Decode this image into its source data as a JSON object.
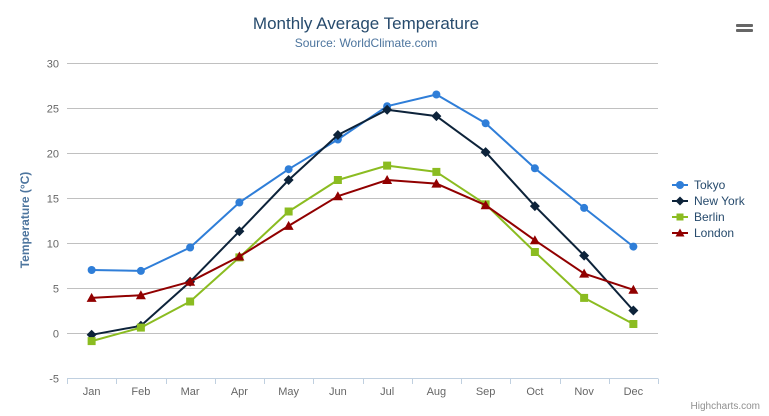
{
  "chart": {
    "credits": "Highcharts.com"
  },
  "colors": {
    "background": "#ffffff",
    "title": "#274b6d",
    "subtitle": "#4d759e",
    "axis_title": "#4d759e",
    "labels": "#666666",
    "grid": "#c0c0c0",
    "axis_line": "#c0d0e0",
    "legend_text": "#274b6d",
    "menu_icon": "#666666",
    "credits": "#909090"
  },
  "chart_data": {
    "type": "line",
    "title": "Monthly Average Temperature",
    "subtitle": "Source: WorldClimate.com",
    "xlabel": "",
    "ylabel": "Temperature (°C)",
    "ylim": [
      -5,
      30
    ],
    "ytick_step": 5,
    "grid": true,
    "legend_position": "right",
    "categories": [
      "Jan",
      "Feb",
      "Mar",
      "Apr",
      "May",
      "Jun",
      "Jul",
      "Aug",
      "Sep",
      "Oct",
      "Nov",
      "Dec"
    ],
    "series": [
      {
        "name": "Tokyo",
        "color": "#2f7ed8",
        "marker": "circle",
        "values": [
          7.0,
          6.9,
          9.5,
          14.5,
          18.2,
          21.5,
          25.2,
          26.5,
          23.3,
          18.3,
          13.9,
          9.6
        ]
      },
      {
        "name": "New York",
        "color": "#0d233a",
        "marker": "diamond",
        "values": [
          -0.2,
          0.8,
          5.7,
          11.3,
          17.0,
          22.0,
          24.8,
          24.1,
          20.1,
          14.1,
          8.6,
          2.5
        ]
      },
      {
        "name": "Berlin",
        "color": "#8bbc21",
        "marker": "square",
        "values": [
          -0.9,
          0.6,
          3.5,
          8.4,
          13.5,
          17.0,
          18.6,
          17.9,
          14.3,
          9.0,
          3.9,
          1.0
        ]
      },
      {
        "name": "London",
        "color": "#910000",
        "marker": "triangle",
        "values": [
          3.9,
          4.2,
          5.7,
          8.5,
          11.9,
          15.2,
          17.0,
          16.6,
          14.2,
          10.3,
          6.6,
          4.8
        ]
      }
    ]
  }
}
